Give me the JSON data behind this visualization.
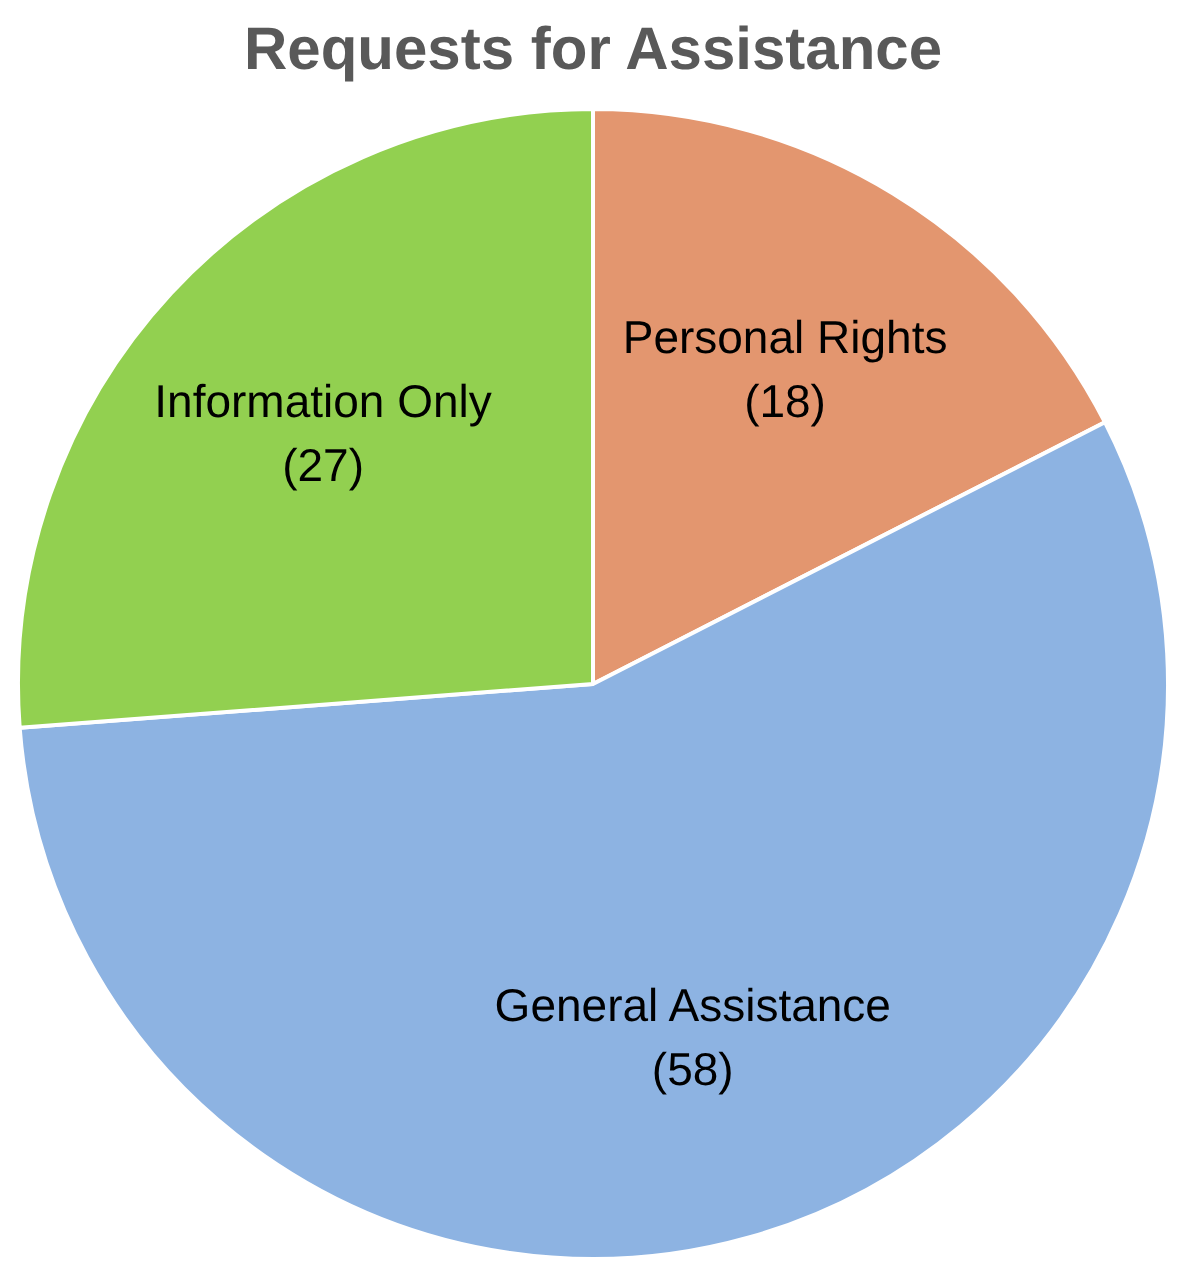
{
  "chart_data": {
    "type": "pie",
    "title": "Requests for Assistance",
    "categories": [
      "Personal Rights",
      "General Assistance",
      "Information Only"
    ],
    "values": [
      18,
      58,
      27
    ],
    "colors": [
      "#e3966f",
      "#8db3e2",
      "#92d050"
    ],
    "value_labels": [
      "(18)",
      "(58)",
      "(27)"
    ],
    "legend": false
  }
}
